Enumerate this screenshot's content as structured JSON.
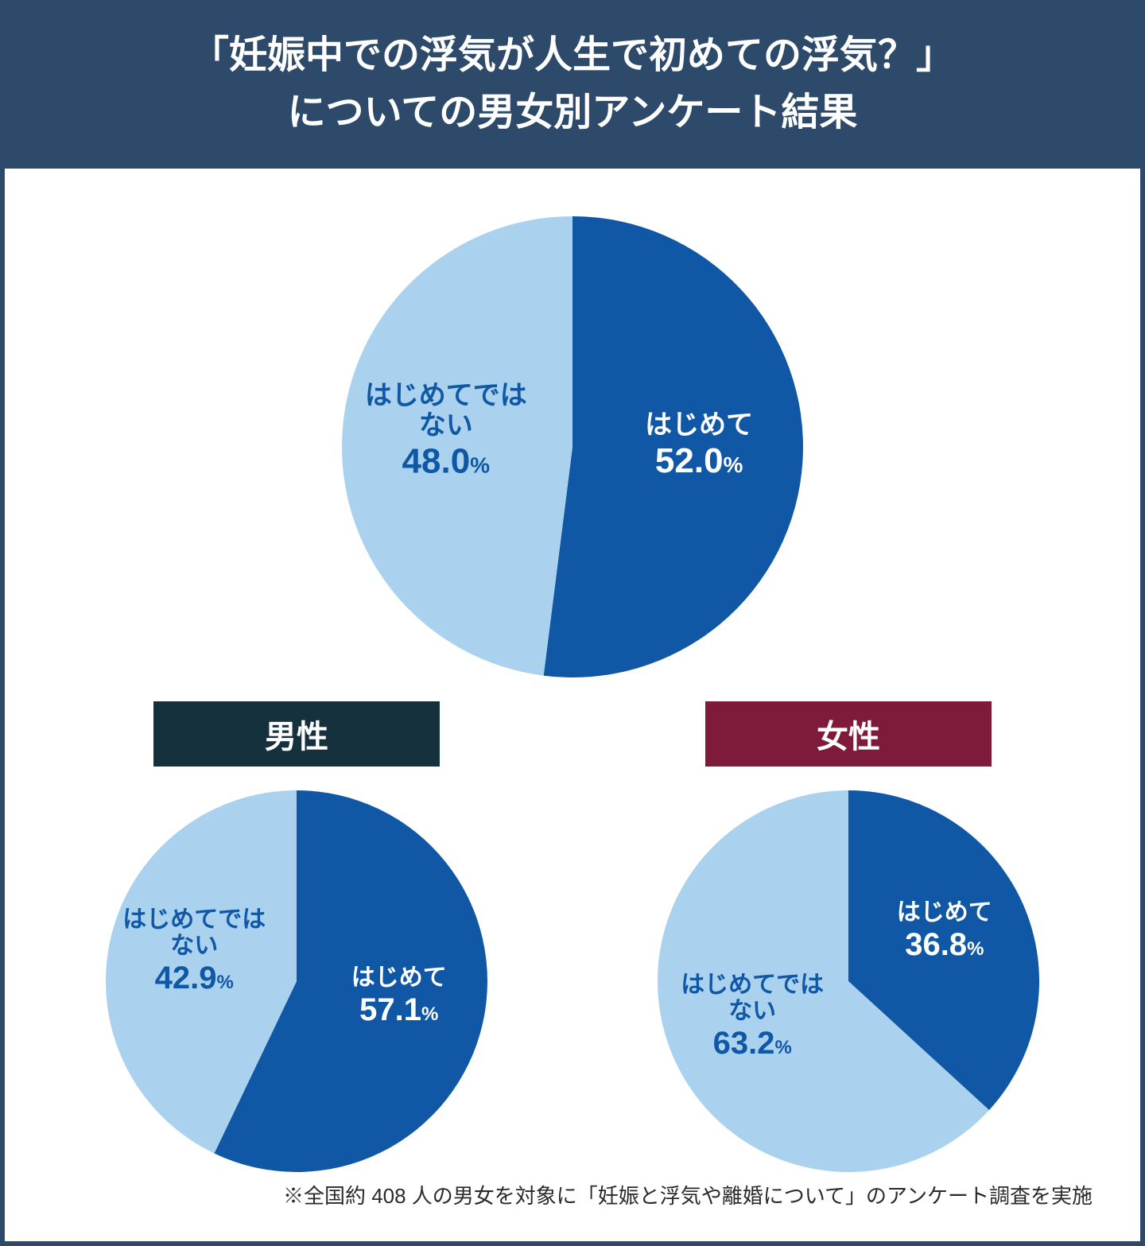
{
  "header": {
    "line1": "「妊娠中での浮気が人生で初めての浮気？」",
    "line2": "についての男女別アンケート結果",
    "bg_color": "#2d4a6b",
    "text_color": "#ffffff",
    "fontsize": 48
  },
  "colors": {
    "slice_first": "#1058a5",
    "slice_not_first": "#aad2ef",
    "label_on_dark": "#ffffff",
    "label_on_light": "#1058a5",
    "male_badge_bg": "#16313e",
    "female_badge_bg": "#7e1a3a",
    "badge_text": "#ffffff",
    "body_bg": "#ffffff",
    "border": "#2d4a6b"
  },
  "main_chart": {
    "type": "pie",
    "diameter": 580,
    "slices": [
      {
        "key": "first",
        "label": "はじめて",
        "value": 52.0,
        "value_text": "52.0",
        "pct_suffix": "%"
      },
      {
        "key": "not_first",
        "label_line1": "はじめてでは",
        "label_line2": "ない",
        "value": 48.0,
        "value_text": "48.0",
        "pct_suffix": "%"
      }
    ],
    "label_fontsize_title": 34,
    "label_fontsize_value": 44,
    "label_fontsize_pct": 28
  },
  "sub_charts": [
    {
      "id": "male",
      "badge_label": "男性",
      "badge_bg_key": "male_badge_bg",
      "diameter": 480,
      "slices": [
        {
          "key": "first",
          "label": "はじめて",
          "value": 57.1,
          "value_text": "57.1",
          "pct_suffix": "%"
        },
        {
          "key": "not_first",
          "label_line1": "はじめてでは",
          "label_line2": "ない",
          "value": 42.9,
          "value_text": "42.9",
          "pct_suffix": "%"
        }
      ],
      "label_fontsize_title": 30,
      "label_fontsize_value": 40,
      "label_fontsize_pct": 24
    },
    {
      "id": "female",
      "badge_label": "女性",
      "badge_bg_key": "female_badge_bg",
      "diameter": 480,
      "slices": [
        {
          "key": "first",
          "label": "はじめて",
          "value": 36.8,
          "value_text": "36.8",
          "pct_suffix": "%"
        },
        {
          "key": "not_first",
          "label_line1": "はじめてでは",
          "label_line2": "ない",
          "value": 63.2,
          "value_text": "63.2",
          "pct_suffix": "%"
        }
      ],
      "label_fontsize_title": 30,
      "label_fontsize_value": 40,
      "label_fontsize_pct": 24
    }
  ],
  "footnote": {
    "text": "※全国約 408 人の男女を対象に「妊娠と浮気や離婚について」のアンケート調査を実施",
    "fontsize": 26,
    "color": "#2a2a2a"
  }
}
